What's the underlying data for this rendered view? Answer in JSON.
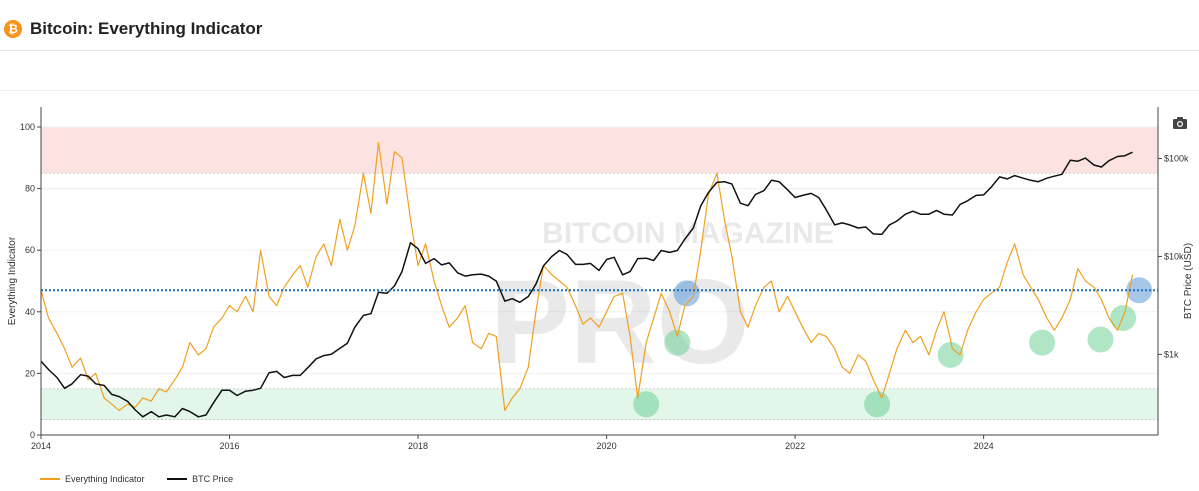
{
  "header": {
    "title": "Bitcoin: Everything Indicator",
    "coin_icon": "bitcoin-icon",
    "coin_symbol": "₿"
  },
  "toolbar": {
    "camera_icon": "camera-icon"
  },
  "watermark": {
    "line1": "BITCOIN MAGAZINE",
    "line2": "PRO"
  },
  "colors": {
    "indicator": "#f0a020",
    "price": "#111111",
    "threshold": "#1f6fb5",
    "upper_band": "#fde2e2",
    "lower_band": "#e3f6ea"
  },
  "chart_data": {
    "type": "line",
    "xlabel": "",
    "ylabel": "Everything Indicator",
    "y2label": "BTC Price (USD)",
    "xlim": [
      2014.0,
      2025.85
    ],
    "ylim": [
      0,
      100
    ],
    "y2scale": "log",
    "y2lim": [
      150,
      210000
    ],
    "x_ticks": [
      "2014",
      "2016",
      "2018",
      "2020",
      "2022",
      "2024"
    ],
    "y_ticks": [
      "0",
      "20",
      "40",
      "60",
      "80",
      "100"
    ],
    "y2_ticks": [
      {
        "value": 1000,
        "label": "$1k"
      },
      {
        "value": 10000,
        "label": "$10k"
      },
      {
        "value": 100000,
        "label": "$100k"
      }
    ],
    "bands": [
      {
        "from": 85,
        "to": 100,
        "color": "#fde2e2"
      },
      {
        "from": 5,
        "to": 15,
        "color": "#e3f6ea"
      }
    ],
    "threshold": 47,
    "legend": [
      "Everything Indicator",
      "BTC Price"
    ],
    "legend_position": "bottom-left",
    "series": [
      {
        "name": "Everything Indicator",
        "axis": "left",
        "x": [
          2014.0,
          2014.08,
          2014.17,
          2014.25,
          2014.33,
          2014.42,
          2014.5,
          2014.58,
          2014.67,
          2014.75,
          2014.83,
          2014.92,
          2015.0,
          2015.08,
          2015.17,
          2015.25,
          2015.33,
          2015.42,
          2015.5,
          2015.58,
          2015.67,
          2015.75,
          2015.83,
          2015.92,
          2016.0,
          2016.08,
          2016.17,
          2016.25,
          2016.33,
          2016.42,
          2016.5,
          2016.58,
          2016.67,
          2016.75,
          2016.83,
          2016.92,
          2017.0,
          2017.08,
          2017.17,
          2017.25,
          2017.33,
          2017.42,
          2017.5,
          2017.58,
          2017.67,
          2017.75,
          2017.83,
          2017.92,
          2018.0,
          2018.08,
          2018.17,
          2018.25,
          2018.33,
          2018.42,
          2018.5,
          2018.58,
          2018.67,
          2018.75,
          2018.83,
          2018.92,
          2019.0,
          2019.08,
          2019.17,
          2019.25,
          2019.33,
          2019.42,
          2019.5,
          2019.58,
          2019.67,
          2019.75,
          2019.83,
          2019.92,
          2020.0,
          2020.08,
          2020.17,
          2020.25,
          2020.33,
          2020.42,
          2020.5,
          2020.58,
          2020.67,
          2020.75,
          2020.83,
          2020.92,
          2021.0,
          2021.08,
          2021.17,
          2021.25,
          2021.33,
          2021.42,
          2021.5,
          2021.58,
          2021.67,
          2021.75,
          2021.83,
          2021.92,
          2022.0,
          2022.08,
          2022.17,
          2022.25,
          2022.33,
          2022.42,
          2022.5,
          2022.58,
          2022.67,
          2022.75,
          2022.83,
          2022.92,
          2023.0,
          2023.08,
          2023.17,
          2023.25,
          2023.33,
          2023.42,
          2023.5,
          2023.58,
          2023.67,
          2023.75,
          2023.83,
          2023.92,
          2024.0,
          2024.08,
          2024.17,
          2024.25,
          2024.33,
          2024.42,
          2024.5,
          2024.58,
          2024.67,
          2024.75,
          2024.83,
          2024.92,
          2025.0,
          2025.08,
          2025.17,
          2025.25,
          2025.33,
          2025.42,
          2025.5,
          2025.58
        ],
        "values": [
          47,
          38,
          33,
          28,
          22,
          25,
          18,
          20,
          12,
          10,
          8,
          10,
          9,
          12,
          11,
          15,
          14,
          18,
          22,
          30,
          26,
          28,
          35,
          38,
          42,
          40,
          45,
          40,
          60,
          45,
          42,
          48,
          52,
          55,
          48,
          58,
          62,
          55,
          70,
          60,
          68,
          85,
          72,
          95,
          75,
          92,
          90,
          70,
          55,
          62,
          50,
          42,
          35,
          38,
          42,
          30,
          28,
          33,
          32,
          8,
          12,
          15,
          22,
          40,
          55,
          52,
          50,
          48,
          42,
          36,
          38,
          35,
          40,
          45,
          46,
          32,
          12,
          30,
          38,
          46,
          40,
          32,
          42,
          45,
          60,
          78,
          85,
          70,
          58,
          40,
          35,
          42,
          48,
          50,
          40,
          45,
          40,
          35,
          30,
          33,
          32,
          28,
          22,
          20,
          26,
          24,
          18,
          12,
          20,
          28,
          34,
          30,
          32,
          26,
          34,
          40,
          28,
          26,
          34,
          40,
          44,
          46,
          48,
          56,
          62,
          52,
          48,
          44,
          38,
          34,
          38,
          44,
          54,
          50,
          48,
          44,
          38,
          34,
          40,
          52
        ]
      },
      {
        "name": "BTC Price",
        "axis": "right",
        "x": [
          2014.0,
          2014.08,
          2014.17,
          2014.25,
          2014.33,
          2014.42,
          2014.5,
          2014.58,
          2014.67,
          2014.75,
          2014.83,
          2014.92,
          2015.0,
          2015.08,
          2015.17,
          2015.25,
          2015.33,
          2015.42,
          2015.5,
          2015.58,
          2015.67,
          2015.75,
          2015.83,
          2015.92,
          2016.0,
          2016.08,
          2016.17,
          2016.25,
          2016.33,
          2016.42,
          2016.5,
          2016.58,
          2016.67,
          2016.75,
          2016.83,
          2016.92,
          2017.0,
          2017.08,
          2017.17,
          2017.25,
          2017.33,
          2017.42,
          2017.5,
          2017.58,
          2017.67,
          2017.75,
          2017.83,
          2017.92,
          2018.0,
          2018.08,
          2018.17,
          2018.25,
          2018.33,
          2018.42,
          2018.5,
          2018.58,
          2018.67,
          2018.75,
          2018.83,
          2018.92,
          2019.0,
          2019.08,
          2019.17,
          2019.25,
          2019.33,
          2019.42,
          2019.5,
          2019.58,
          2019.67,
          2019.75,
          2019.83,
          2019.92,
          2020.0,
          2020.08,
          2020.17,
          2020.25,
          2020.33,
          2020.42,
          2020.5,
          2020.58,
          2020.67,
          2020.75,
          2020.83,
          2020.92,
          2021.0,
          2021.08,
          2021.17,
          2021.25,
          2021.33,
          2021.42,
          2021.5,
          2021.58,
          2021.67,
          2021.75,
          2021.83,
          2021.92,
          2022.0,
          2022.08,
          2022.17,
          2022.25,
          2022.33,
          2022.42,
          2022.5,
          2022.58,
          2022.67,
          2022.75,
          2022.83,
          2022.92,
          2023.0,
          2023.08,
          2023.17,
          2023.25,
          2023.33,
          2023.42,
          2023.5,
          2023.58,
          2023.67,
          2023.75,
          2023.83,
          2023.92,
          2024.0,
          2024.08,
          2024.17,
          2024.25,
          2024.33,
          2024.42,
          2024.5,
          2024.58,
          2024.67,
          2024.75,
          2024.83,
          2024.92,
          2025.0,
          2025.08,
          2025.17,
          2025.25,
          2025.33,
          2025.42,
          2025.5,
          2025.58
        ],
        "values": [
          850,
          700,
          580,
          450,
          500,
          620,
          600,
          500,
          480,
          390,
          370,
          330,
          270,
          230,
          260,
          230,
          240,
          230,
          280,
          260,
          230,
          240,
          320,
          430,
          430,
          380,
          420,
          430,
          450,
          650,
          670,
          580,
          610,
          610,
          730,
          900,
          970,
          1000,
          1150,
          1300,
          1900,
          2500,
          2600,
          4300,
          4200,
          5000,
          7000,
          13800,
          12000,
          8500,
          9500,
          8200,
          8600,
          6800,
          6300,
          6500,
          6600,
          6300,
          5600,
          3500,
          3700,
          3400,
          3900,
          5200,
          8000,
          10000,
          11500,
          10500,
          8300,
          8300,
          8500,
          7200,
          9300,
          9800,
          6500,
          7000,
          9500,
          9600,
          9100,
          11500,
          11000,
          11500,
          15000,
          19500,
          33000,
          45000,
          57000,
          58000,
          55000,
          35000,
          33000,
          43000,
          47000,
          60000,
          58000,
          48000,
          40000,
          42000,
          44000,
          40000,
          30000,
          21000,
          22000,
          21000,
          19500,
          20000,
          17000,
          16800,
          21000,
          23000,
          27000,
          29000,
          27000,
          27000,
          29500,
          27000,
          26500,
          34000,
          37000,
          42000,
          42500,
          51000,
          65000,
          62000,
          67000,
          63000,
          60000,
          58000,
          63000,
          66000,
          69000,
          96000,
          94000,
          101000,
          86000,
          82000,
          95000,
          105000,
          107000,
          116000
        ]
      }
    ],
    "annotations": [
      {
        "x": 2020.85,
        "y": 46,
        "kind": "top",
        "color": "#5b9bd5"
      },
      {
        "x": 2025.65,
        "y": 47,
        "kind": "top",
        "color": "#5b9bd5"
      },
      {
        "x": 2020.42,
        "y": 10,
        "kind": "bottom",
        "color": "#6fcf97"
      },
      {
        "x": 2020.75,
        "y": 30,
        "kind": "bottom",
        "color": "#6fcf97"
      },
      {
        "x": 2022.87,
        "y": 10,
        "kind": "bottom",
        "color": "#6fcf97"
      },
      {
        "x": 2023.65,
        "y": 26,
        "kind": "bottom",
        "color": "#6fcf97"
      },
      {
        "x": 2024.62,
        "y": 30,
        "kind": "bottom",
        "color": "#6fcf97"
      },
      {
        "x": 2025.24,
        "y": 31,
        "kind": "bottom",
        "color": "#6fcf97"
      },
      {
        "x": 2025.48,
        "y": 38,
        "kind": "bottom",
        "color": "#6fcf97"
      }
    ]
  }
}
